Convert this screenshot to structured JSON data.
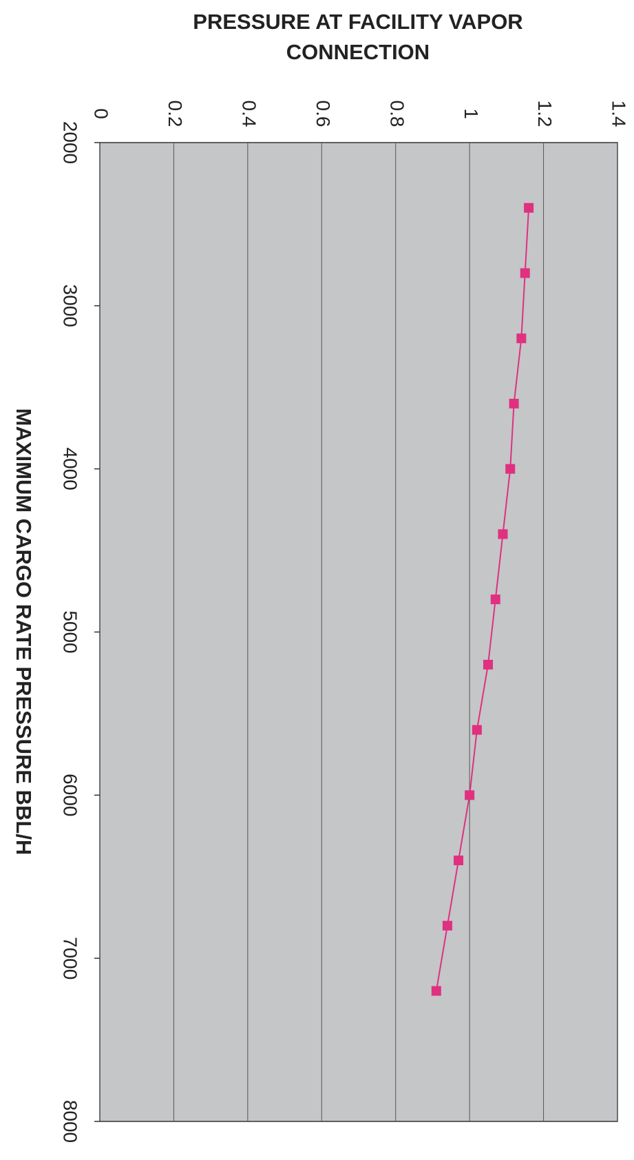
{
  "chart_data": {
    "type": "line",
    "title": "PRESSURE AT FACILITY VAPOR CONNECTION",
    "x_label": "MAXIMUM CARGO RATE PRESSURE BBL/H",
    "x": [
      2400,
      2800,
      3200,
      3600,
      4000,
      4400,
      4800,
      5200,
      5600,
      6000,
      6400,
      6800,
      7200
    ],
    "values": [
      1.16,
      1.15,
      1.14,
      1.12,
      1.11,
      1.09,
      1.07,
      1.05,
      1.02,
      1.0,
      0.97,
      0.94,
      0.91
    ],
    "color": "#e0307f",
    "xlim": [
      2000,
      8000
    ],
    "xticks": [
      2000,
      3000,
      4000,
      5000,
      6000,
      7000,
      8000
    ],
    "ylim": [
      0,
      1.4
    ],
    "yticks": [
      0,
      0.2,
      0.4,
      0.6,
      0.8,
      1,
      1.2,
      1.4
    ],
    "grid": true
  }
}
